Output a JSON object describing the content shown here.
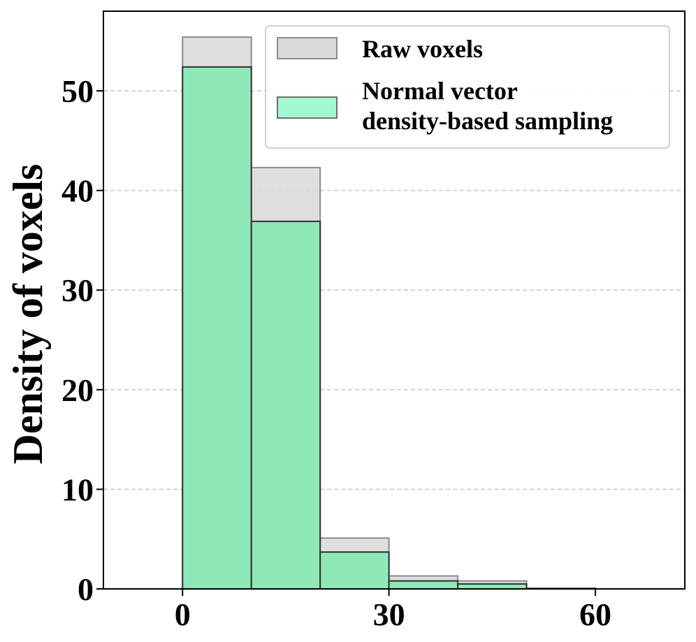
{
  "chart_data": {
    "type": "bar",
    "title": "",
    "xlabel": "",
    "ylabel": "Density of voxels",
    "bin_edges": [
      0,
      10,
      20,
      30,
      40,
      50,
      60,
      70
    ],
    "xlim": [
      -11.5,
      73
    ],
    "ylim": [
      0,
      58
    ],
    "xticks": [
      0,
      30,
      60
    ],
    "yticks": [
      0,
      10,
      20,
      30,
      40,
      50
    ],
    "grid": "horizontal-dashed",
    "legend_position": "top-right",
    "series": [
      {
        "name": "Raw voxels",
        "values": [
          55.4,
          42.3,
          5.1,
          1.3,
          0.8,
          0.05,
          0
        ],
        "color": "#d9d9d9"
      },
      {
        "name": "Normal vector\ndensity-based sampling",
        "values": [
          52.4,
          36.9,
          3.7,
          0.8,
          0.5,
          0.05,
          0
        ],
        "color": "#a3fad0"
      }
    ]
  }
}
